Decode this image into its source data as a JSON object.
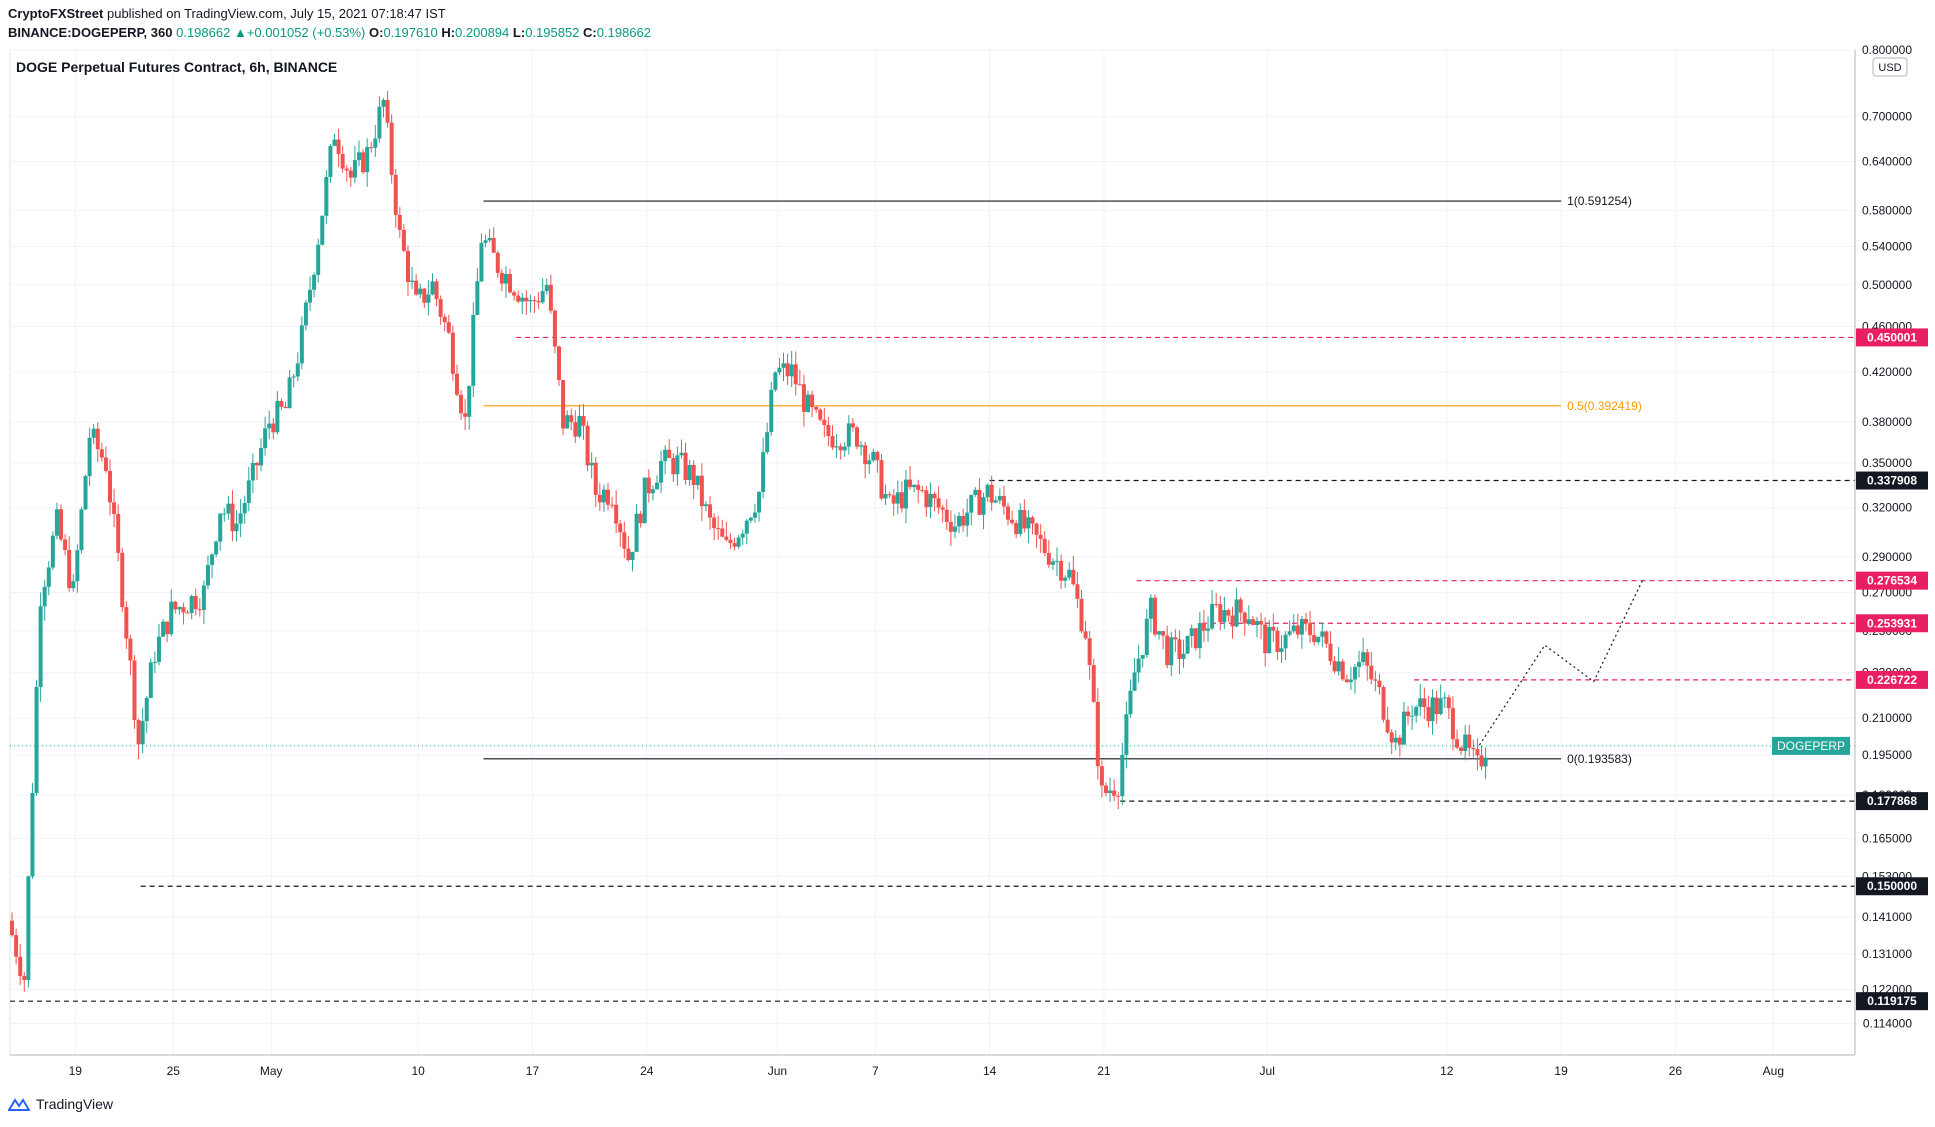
{
  "header": {
    "publisher": "CryptoFXStreet",
    "published_text": "published on TradingView.com, July 15, 2021 07:18:47 IST",
    "symbol": "BINANCE:DOGEPERP, 360",
    "last": "0.198662",
    "change": "+0.001052 (+0.53%)",
    "o_label": "O:",
    "o": "0.197610",
    "h_label": "H:",
    "h": "0.200894",
    "l_label": "L:",
    "l": "0.195852",
    "c_label": "C:",
    "c": "0.198662"
  },
  "chart_title": "DOGE Perpetual Futures Contract, 6h, BINANCE",
  "currency": "USD",
  "footer": {
    "brand": "TradingView"
  },
  "colors": {
    "up": "#26a69a",
    "down": "#ef5350",
    "red_level": "#e91e63",
    "orange": "#ff9800",
    "black": "#131722",
    "grid": "#f0f3fa",
    "axis_text": "#131722"
  },
  "chart_data": {
    "type": "candlestick",
    "title": "DOGE Perpetual Futures Contract, 6h, BINANCE",
    "ylabel": "USD",
    "y_scale": "log",
    "ylim": [
      0.107,
      0.8
    ],
    "xlim": [
      "2021-04-15",
      "2021-08-06"
    ],
    "y_ticks": [
      "0.800000",
      "0.700000",
      "0.640000",
      "0.580000",
      "0.540000",
      "0.500000",
      "0.460000",
      "0.420000",
      "0.380000",
      "0.350000",
      "0.320000",
      "0.290000",
      "0.270000",
      "0.250000",
      "0.230000",
      "0.210000",
      "0.195000",
      "0.180000",
      "0.165000",
      "0.153000",
      "0.141000",
      "0.131000",
      "0.122000",
      "0.114000"
    ],
    "x_ticks": [
      {
        "date": "2021-04-19",
        "label": "19"
      },
      {
        "date": "2021-04-25",
        "label": "25"
      },
      {
        "date": "2021-05-01",
        "label": "May"
      },
      {
        "date": "2021-05-10",
        "label": "10"
      },
      {
        "date": "2021-05-17",
        "label": "17"
      },
      {
        "date": "2021-05-24",
        "label": "24"
      },
      {
        "date": "2021-06-01",
        "label": "Jun"
      },
      {
        "date": "2021-06-07",
        "label": "7"
      },
      {
        "date": "2021-06-14",
        "label": "14"
      },
      {
        "date": "2021-06-21",
        "label": "21"
      },
      {
        "date": "2021-07-01",
        "label": "Jul"
      },
      {
        "date": "2021-07-12",
        "label": "12"
      },
      {
        "date": "2021-07-19",
        "label": "19"
      },
      {
        "date": "2021-07-26",
        "label": "26"
      },
      {
        "date": "2021-08-01",
        "label": "Aug"
      }
    ],
    "horizontal_levels": [
      {
        "value": 0.450001,
        "label": "0.450001",
        "style": "dashed",
        "color": "red_level",
        "from": "2021-05-16"
      },
      {
        "value": 0.337908,
        "label": "0.337908",
        "style": "dashed",
        "color": "black",
        "from": "2021-06-14"
      },
      {
        "value": 0.276534,
        "label": "0.276534",
        "style": "dashed",
        "color": "red_level",
        "from": "2021-06-23"
      },
      {
        "value": 0.253931,
        "label": "0.253931",
        "style": "dashed",
        "color": "red_level",
        "from": "2021-06-27"
      },
      {
        "value": 0.226722,
        "label": "0.226722",
        "style": "dashed",
        "color": "red_level",
        "from": "2021-07-10"
      },
      {
        "value": 0.177868,
        "label": "0.177868",
        "style": "dashed",
        "color": "black",
        "from": "2021-06-22"
      },
      {
        "value": 0.15,
        "label": "0.150000",
        "style": "dashed",
        "color": "black",
        "from": "2021-04-23"
      },
      {
        "value": 0.119175,
        "label": "0.119175",
        "style": "dashed",
        "color": "black",
        "from": "2021-04-15"
      }
    ],
    "fib_levels": [
      {
        "ratio": "1",
        "value": 0.591254,
        "label": "1(0.591254)",
        "color": "black"
      },
      {
        "ratio": "0.5",
        "value": 0.392419,
        "label": "0.5(0.392419)",
        "color": "orange"
      },
      {
        "ratio": "0",
        "value": 0.193583,
        "label": "0(0.193583)",
        "color": "black"
      }
    ],
    "fib_range": [
      "2021-05-14",
      "2021-07-19"
    ],
    "current_price": {
      "value": 0.198662,
      "label": "DOGEPERP"
    },
    "projection_path": [
      {
        "date": "2021-07-14",
        "value": 0.199
      },
      {
        "date": "2021-07-18",
        "value": 0.243
      },
      {
        "date": "2021-07-21",
        "value": 0.226
      },
      {
        "date": "2021-07-24",
        "value": 0.277
      }
    ],
    "price_path": [
      {
        "date": "2021-04-15",
        "value": 0.14
      },
      {
        "date": "2021-04-16",
        "value": 0.125
      },
      {
        "date": "2021-04-17",
        "value": 0.27
      },
      {
        "date": "2021-04-18",
        "value": 0.31
      },
      {
        "date": "2021-04-19",
        "value": 0.27
      },
      {
        "date": "2021-04-20",
        "value": 0.37
      },
      {
        "date": "2021-04-21",
        "value": 0.35
      },
      {
        "date": "2021-04-22",
        "value": 0.27
      },
      {
        "date": "2021-04-23",
        "value": 0.2
      },
      {
        "date": "2021-04-24",
        "value": 0.24
      },
      {
        "date": "2021-04-25",
        "value": 0.26
      },
      {
        "date": "2021-04-27",
        "value": 0.27
      },
      {
        "date": "2021-04-28",
        "value": 0.32
      },
      {
        "date": "2021-04-29",
        "value": 0.31
      },
      {
        "date": "2021-04-30",
        "value": 0.34
      },
      {
        "date": "2021-05-01",
        "value": 0.38
      },
      {
        "date": "2021-05-02",
        "value": 0.39
      },
      {
        "date": "2021-05-03",
        "value": 0.45
      },
      {
        "date": "2021-05-04",
        "value": 0.55
      },
      {
        "date": "2021-05-05",
        "value": 0.68
      },
      {
        "date": "2021-05-06",
        "value": 0.62
      },
      {
        "date": "2021-05-07",
        "value": 0.65
      },
      {
        "date": "2021-05-08",
        "value": 0.72
      },
      {
        "date": "2021-05-09",
        "value": 0.55
      },
      {
        "date": "2021-05-10",
        "value": 0.48
      },
      {
        "date": "2021-05-11",
        "value": 0.5
      },
      {
        "date": "2021-05-12",
        "value": 0.45
      },
      {
        "date": "2021-05-13",
        "value": 0.38
      },
      {
        "date": "2021-05-14",
        "value": 0.55
      },
      {
        "date": "2021-05-15",
        "value": 0.52
      },
      {
        "date": "2021-05-16",
        "value": 0.5
      },
      {
        "date": "2021-05-17",
        "value": 0.48
      },
      {
        "date": "2021-05-18",
        "value": 0.5
      },
      {
        "date": "2021-05-19",
        "value": 0.38
      },
      {
        "date": "2021-05-20",
        "value": 0.38
      },
      {
        "date": "2021-05-21",
        "value": 0.33
      },
      {
        "date": "2021-05-22",
        "value": 0.33
      },
      {
        "date": "2021-05-23",
        "value": 0.29
      },
      {
        "date": "2021-05-24",
        "value": 0.33
      },
      {
        "date": "2021-05-25",
        "value": 0.35
      },
      {
        "date": "2021-05-26",
        "value": 0.35
      },
      {
        "date": "2021-05-27",
        "value": 0.34
      },
      {
        "date": "2021-05-28",
        "value": 0.31
      },
      {
        "date": "2021-05-29",
        "value": 0.295
      },
      {
        "date": "2021-05-30",
        "value": 0.31
      },
      {
        "date": "2021-05-31",
        "value": 0.33
      },
      {
        "date": "2021-06-01",
        "value": 0.42
      },
      {
        "date": "2021-06-02",
        "value": 0.42
      },
      {
        "date": "2021-06-03",
        "value": 0.39
      },
      {
        "date": "2021-06-04",
        "value": 0.37
      },
      {
        "date": "2021-06-05",
        "value": 0.37
      },
      {
        "date": "2021-06-06",
        "value": 0.37
      },
      {
        "date": "2021-06-07",
        "value": 0.35
      },
      {
        "date": "2021-06-08",
        "value": 0.32
      },
      {
        "date": "2021-06-09",
        "value": 0.33
      },
      {
        "date": "2021-06-10",
        "value": 0.33
      },
      {
        "date": "2021-06-11",
        "value": 0.32
      },
      {
        "date": "2021-06-12",
        "value": 0.31
      },
      {
        "date": "2021-06-13",
        "value": 0.32
      },
      {
        "date": "2021-06-14",
        "value": 0.33
      },
      {
        "date": "2021-06-15",
        "value": 0.32
      },
      {
        "date": "2021-06-16",
        "value": 0.31
      },
      {
        "date": "2021-06-17",
        "value": 0.3
      },
      {
        "date": "2021-06-18",
        "value": 0.29
      },
      {
        "date": "2021-06-19",
        "value": 0.28
      },
      {
        "date": "2021-06-20",
        "value": 0.25
      },
      {
        "date": "2021-06-21",
        "value": 0.18
      },
      {
        "date": "2021-06-22",
        "value": 0.185
      },
      {
        "date": "2021-06-23",
        "value": 0.23
      },
      {
        "date": "2021-06-24",
        "value": 0.26
      },
      {
        "date": "2021-06-25",
        "value": 0.24
      },
      {
        "date": "2021-06-26",
        "value": 0.24
      },
      {
        "date": "2021-06-27",
        "value": 0.25
      },
      {
        "date": "2021-06-28",
        "value": 0.26
      },
      {
        "date": "2021-06-29",
        "value": 0.26
      },
      {
        "date": "2021-06-30",
        "value": 0.26
      },
      {
        "date": "2021-07-01",
        "value": 0.245
      },
      {
        "date": "2021-07-02",
        "value": 0.245
      },
      {
        "date": "2021-07-03",
        "value": 0.25
      },
      {
        "date": "2021-07-04",
        "value": 0.25
      },
      {
        "date": "2021-07-05",
        "value": 0.24
      },
      {
        "date": "2021-07-06",
        "value": 0.23
      },
      {
        "date": "2021-07-07",
        "value": 0.235
      },
      {
        "date": "2021-07-08",
        "value": 0.22
      },
      {
        "date": "2021-07-09",
        "value": 0.2
      },
      {
        "date": "2021-07-10",
        "value": 0.215
      },
      {
        "date": "2021-07-11",
        "value": 0.215
      },
      {
        "date": "2021-07-12",
        "value": 0.215
      },
      {
        "date": "2021-07-13",
        "value": 0.2
      },
      {
        "date": "2021-07-14",
        "value": 0.19
      },
      {
        "date": "2021-07-14.5",
        "value": 0.198662
      }
    ]
  }
}
